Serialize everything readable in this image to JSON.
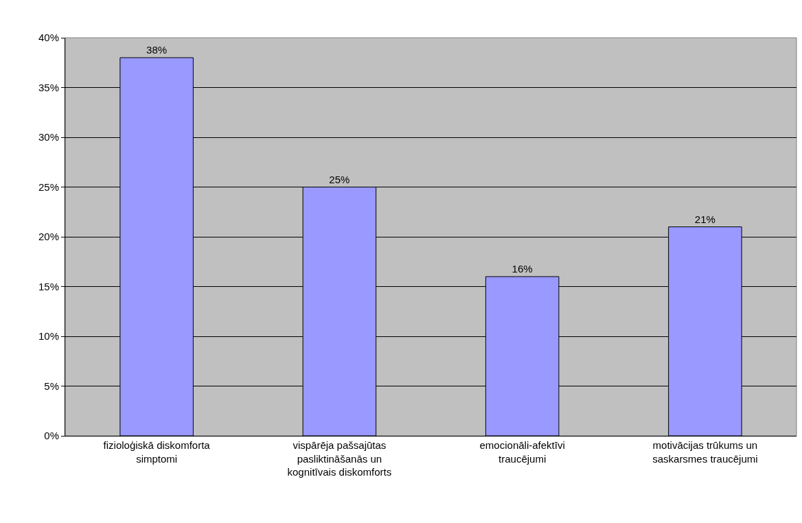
{
  "chart_data": {
    "type": "bar",
    "categories": [
      "fizioloģiskā diskomforta simptomi",
      "vispārēja pašsajūtas pasliktināšanās un kognitīvais diskomforts",
      "emocionāli-afektīvi traucējumi",
      "motivācijas trūkums un saskarsmes traucējumi"
    ],
    "values": [
      38,
      25,
      16,
      21
    ],
    "value_labels": [
      "38%",
      "25%",
      "16%",
      "21%"
    ],
    "color": "#9999ff",
    "ylim": [
      0,
      40
    ],
    "yticks": [
      {
        "value": 0,
        "label": "0%"
      },
      {
        "value": 5,
        "label": "5%"
      },
      {
        "value": 10,
        "label": "10%"
      },
      {
        "value": 15,
        "label": "15%"
      },
      {
        "value": 20,
        "label": "20%"
      },
      {
        "value": 25,
        "label": "25%"
      },
      {
        "value": 30,
        "label": "30%"
      },
      {
        "value": 35,
        "label": "35%"
      },
      {
        "value": 40,
        "label": "40%"
      }
    ],
    "grid": "y",
    "legend": false
  }
}
